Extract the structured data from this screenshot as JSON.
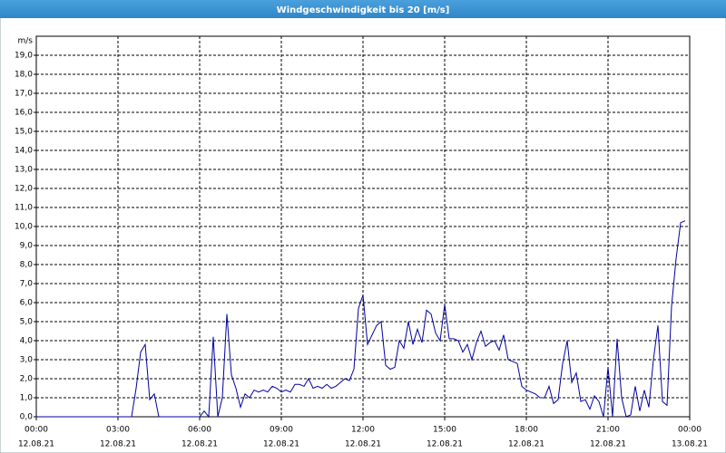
{
  "chart_data": {
    "type": "line",
    "title": "Windgeschwindigkeit bis 20 [m/s]",
    "y_unit": "m/s",
    "x": [
      0,
      10,
      20,
      30,
      40,
      50,
      60,
      70,
      80,
      90,
      100,
      110,
      120,
      130,
      140,
      150,
      160,
      170,
      180,
      190,
      200,
      210,
      220,
      230,
      240,
      250,
      260,
      270,
      280,
      290,
      300,
      310,
      320,
      330,
      340,
      350,
      360,
      370,
      380,
      390,
      400,
      410,
      420,
      430,
      440,
      450,
      460,
      470,
      480,
      490,
      500,
      510,
      520,
      530,
      540,
      550,
      560,
      570,
      580,
      590,
      600,
      610,
      620,
      630,
      640,
      650,
      660,
      670,
      680,
      690,
      700,
      710,
      720,
      730,
      740,
      750,
      760,
      770,
      780,
      790,
      800,
      810,
      820,
      830,
      840,
      850,
      860,
      870,
      880,
      890,
      900,
      910,
      920,
      930,
      940,
      950,
      960,
      970,
      980,
      990,
      1000,
      1010,
      1020,
      1030,
      1040,
      1050,
      1060,
      1070,
      1080,
      1090,
      1100,
      1110,
      1120,
      1130,
      1140,
      1150,
      1160,
      1170,
      1180,
      1190,
      1200,
      1210,
      1220,
      1230,
      1240,
      1250,
      1260,
      1270,
      1280,
      1290,
      1300,
      1310,
      1320,
      1330,
      1340,
      1350,
      1360,
      1370,
      1380,
      1390,
      1400,
      1410,
      1420,
      1430
    ],
    "series": [
      {
        "color": "#0000a0",
        "values": [
          0,
          0,
          0,
          0,
          0,
          0,
          0,
          0,
          0,
          0,
          0,
          0,
          0,
          0,
          0,
          0,
          0,
          0,
          0,
          0,
          0,
          0,
          1.5,
          3.4,
          3.8,
          0.9,
          1.2,
          0,
          0,
          0,
          0,
          0,
          0,
          0,
          0,
          0,
          0,
          0.3,
          0,
          4.2,
          0,
          1.0,
          5.4,
          2.2,
          1.5,
          0.5,
          1.2,
          1.0,
          1.4,
          1.3,
          1.4,
          1.3,
          1.6,
          1.5,
          1.3,
          1.4,
          1.3,
          1.7,
          1.7,
          1.6,
          2.0,
          1.5,
          1.6,
          1.5,
          1.7,
          1.5,
          1.6,
          1.8,
          2.0,
          1.9,
          2.5,
          5.7,
          6.4,
          3.8,
          4.3,
          4.8,
          5.0,
          2.7,
          2.5,
          2.6,
          4.0,
          3.6,
          5.0,
          3.8,
          4.6,
          3.9,
          5.6,
          5.4,
          4.4,
          4.0,
          5.9,
          4.1,
          4.1,
          4.0,
          3.4,
          3.8,
          3.0,
          3.9,
          4.5,
          3.7,
          3.9,
          4.0,
          3.5,
          4.3,
          3.0,
          2.9,
          2.8,
          1.6,
          1.4,
          1.3,
          1.2,
          1.0,
          1.0,
          1.6,
          0.7,
          0.9,
          2.8,
          4.0,
          1.8,
          2.3,
          0.8,
          0.9,
          0.4,
          1.1,
          0.8,
          0,
          2.6,
          0,
          4.1,
          1.0,
          0,
          0.1,
          1.6,
          0.3,
          1.4,
          0.5,
          3.0,
          4.8,
          0.8,
          0.6,
          5.8,
          8.3,
          10.2,
          10.3
        ]
      }
    ],
    "xlim": [
      0,
      1440
    ],
    "xticks": [
      {
        "value": 0,
        "label": "00:00"
      },
      {
        "value": 180,
        "label": "03:00"
      },
      {
        "value": 360,
        "label": "06:00"
      },
      {
        "value": 540,
        "label": "09:00"
      },
      {
        "value": 720,
        "label": "12:00"
      },
      {
        "value": 900,
        "label": "15:00"
      },
      {
        "value": 1080,
        "label": "18:00"
      },
      {
        "value": 1260,
        "label": "21:00"
      },
      {
        "value": 1440,
        "label": "00:00"
      }
    ],
    "xtick_dates": [
      "12.08.21",
      "12.08.21",
      "12.08.21",
      "12.08.21",
      "12.08.21",
      "12.08.21",
      "12.08.21",
      "12.08.21",
      "13.08.21"
    ],
    "ylim": [
      0,
      20
    ],
    "yticks": [
      {
        "value": 0,
        "label": "0,0"
      },
      {
        "value": 1,
        "label": "1,0"
      },
      {
        "value": 2,
        "label": "2,0"
      },
      {
        "value": 3,
        "label": "3,0"
      },
      {
        "value": 4,
        "label": "4,0"
      },
      {
        "value": 5,
        "label": "5,0"
      },
      {
        "value": 6,
        "label": "6,0"
      },
      {
        "value": 7,
        "label": "7,0"
      },
      {
        "value": 8,
        "label": "8,0"
      },
      {
        "value": 9,
        "label": "9,0"
      },
      {
        "value": 10,
        "label": "10,0"
      },
      {
        "value": 11,
        "label": "11,0"
      },
      {
        "value": 12,
        "label": "12,0"
      },
      {
        "value": 13,
        "label": "13,0"
      },
      {
        "value": 14,
        "label": "14,0"
      },
      {
        "value": 15,
        "label": "15,0"
      },
      {
        "value": 16,
        "label": "16,0"
      },
      {
        "value": 17,
        "label": "17,0"
      },
      {
        "value": 18,
        "label": "18,0"
      },
      {
        "value": 19,
        "label": "19,0"
      }
    ],
    "grid": true
  }
}
